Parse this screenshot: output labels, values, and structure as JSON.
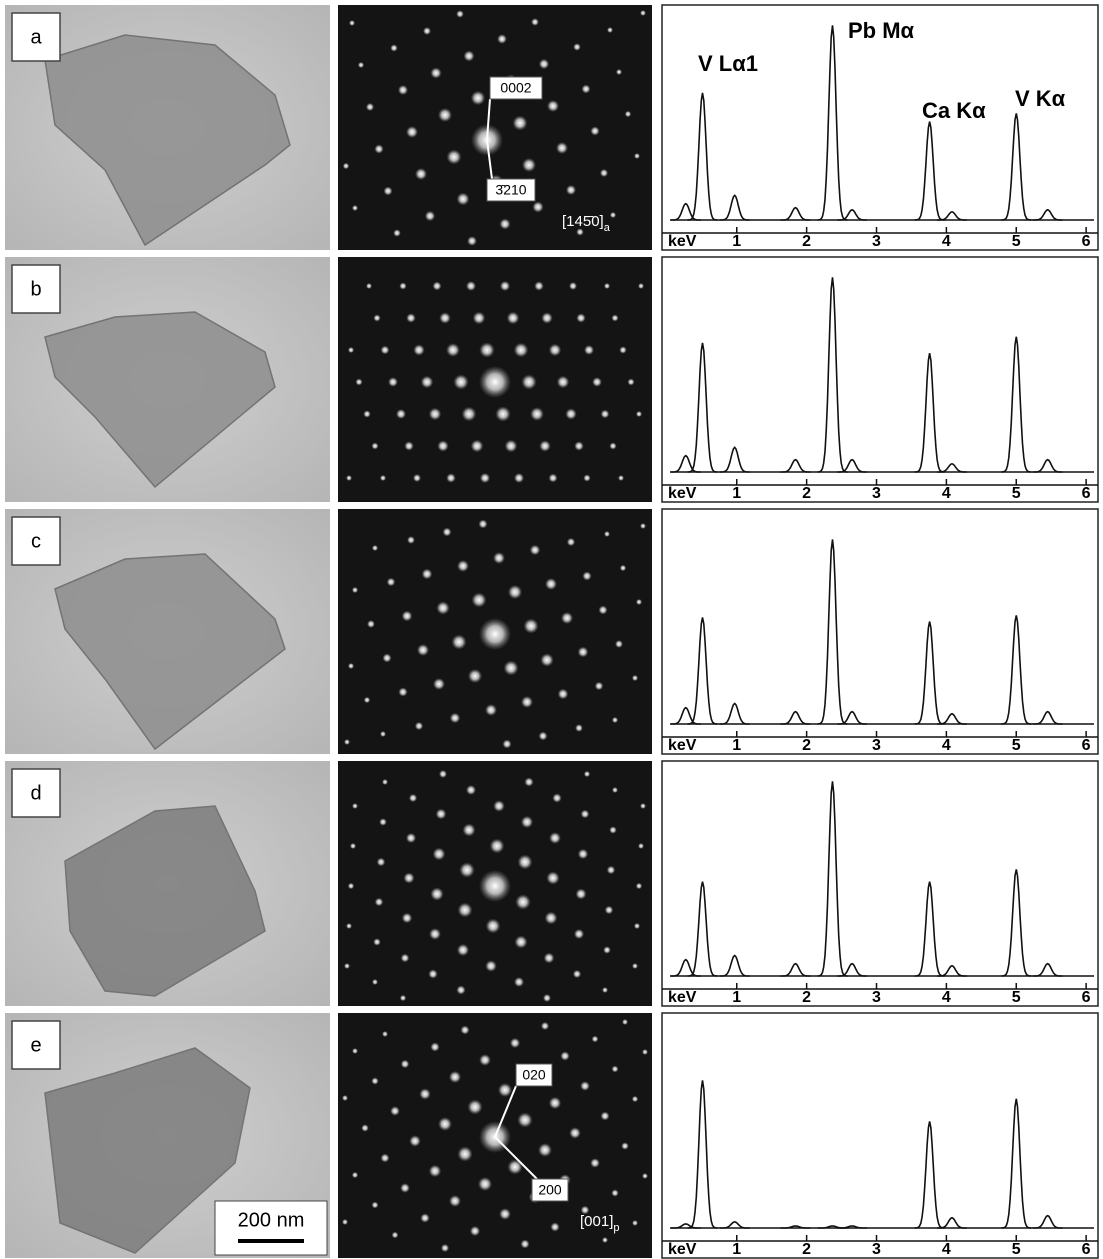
{
  "spectrum_axis": {
    "label": "keV",
    "xlim": [
      -0.07,
      6.17
    ],
    "ylim": [
      0,
      100
    ],
    "xticks": [
      1,
      2,
      3,
      4,
      5,
      6
    ]
  },
  "scale_bar": "200 nm",
  "panels": [
    {
      "label": "a",
      "diffraction_labels": [
        "0002",
        "3̄210"
      ],
      "zone_axis": {
        "text": "[145̄0]",
        "subscript": "a"
      },
      "spectrum_labels": [
        "V Lα1",
        "Pb Mα",
        "Ca Kα",
        "V Kα"
      ],
      "peaks": {
        "x": [
          0.27,
          0.51,
          0.97,
          1.84,
          2.37,
          2.65,
          3.76,
          4.08,
          5.0,
          5.45
        ],
        "values": [
          8,
          62,
          12,
          6,
          95,
          5,
          48,
          4,
          52,
          5
        ]
      }
    },
    {
      "label": "b",
      "peaks": {
        "x": [
          0.27,
          0.51,
          0.97,
          1.84,
          2.37,
          2.65,
          3.76,
          4.08,
          5.0,
          5.45
        ],
        "values": [
          8,
          63,
          12,
          6,
          95,
          6,
          58,
          4,
          66,
          6
        ]
      }
    },
    {
      "label": "c",
      "peaks": {
        "x": [
          0.27,
          0.51,
          0.97,
          1.84,
          2.37,
          2.65,
          3.76,
          4.08,
          5.0,
          5.45
        ],
        "values": [
          8,
          52,
          10,
          6,
          90,
          6,
          50,
          5,
          53,
          6
        ]
      }
    },
    {
      "label": "d",
      "peaks": {
        "x": [
          0.27,
          0.51,
          0.97,
          1.84,
          2.37,
          2.65,
          3.76,
          4.08,
          5.0,
          5.45
        ],
        "values": [
          8,
          46,
          10,
          6,
          95,
          6,
          46,
          5,
          52,
          6
        ]
      }
    },
    {
      "label": "e",
      "diffraction_labels": [
        "020",
        "200"
      ],
      "zone_axis": {
        "text": "[001]",
        "subscript": "p"
      },
      "peaks": {
        "x": [
          0.27,
          0.51,
          0.97,
          1.84,
          2.37,
          2.65,
          3.76,
          4.08,
          5.0,
          5.45
        ],
        "values": [
          2,
          72,
          3,
          1,
          1,
          1,
          52,
          5,
          63,
          6
        ]
      }
    }
  ]
}
